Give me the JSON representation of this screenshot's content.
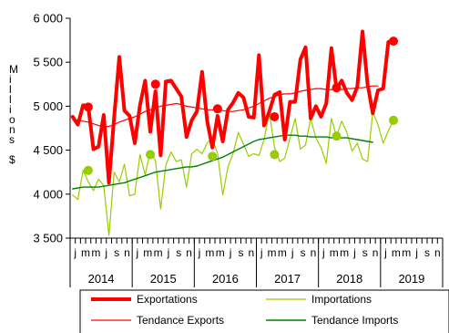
{
  "chart_data": {
    "type": "line",
    "ylabel": "Millions $",
    "ylim": [
      3500,
      6000
    ],
    "yticks": [
      "3 500",
      "4 000",
      "4 500",
      "5 000",
      "5 500",
      "6 000"
    ],
    "years": [
      "2014",
      "2015",
      "2016",
      "2017",
      "2018",
      "2019"
    ],
    "month_labels": [
      "j",
      "m",
      "m",
      "j",
      "s",
      "n"
    ],
    "grid": false,
    "legend_position": "bottom",
    "x_start": "2014-01",
    "series": [
      {
        "name": "Exportations",
        "color": "#ff0000",
        "values": [
          4880,
          4790,
          5010,
          5000,
          4510,
          4540,
          4900,
          4130,
          4870,
          5560,
          4950,
          4890,
          4580,
          5010,
          5290,
          4710,
          5170,
          4440,
          5280,
          5290,
          5200,
          5110,
          4650,
          4840,
          4940,
          5390,
          4830,
          4530,
          4890,
          4600,
          4960,
          5040,
          5150,
          5100,
          4880,
          4870,
          5580,
          4780,
          4940,
          5130,
          5160,
          4620,
          5050,
          5050,
          5530,
          5670,
          4860,
          5000,
          4880,
          5030,
          5660,
          5200,
          5290,
          5150,
          5070,
          5220,
          5850,
          5250,
          4920,
          5180,
          5200,
          5730,
          5750
        ]
      },
      {
        "name": "Importations",
        "color": "#99cc00",
        "values": [
          3990,
          3940,
          4270,
          4140,
          4040,
          4170,
          4100,
          3530,
          4250,
          4140,
          4340,
          3980,
          4000,
          4450,
          4220,
          4490,
          4380,
          3830,
          4330,
          4480,
          4370,
          4390,
          4080,
          4460,
          4510,
          4460,
          4580,
          4640,
          4460,
          3990,
          4310,
          4460,
          4700,
          4570,
          4430,
          4460,
          4440,
          4620,
          4930,
          4530,
          4370,
          4410,
          4640,
          4860,
          4510,
          4560,
          4860,
          4640,
          4530,
          4350,
          4860,
          4660,
          4830,
          4700,
          4490,
          4580,
          4400,
          4370,
          4930,
          4790,
          4580,
          4720,
          4840
        ]
      },
      {
        "name": "Tendance Exports",
        "color": "#ff0000",
        "values": [
          4850,
          4840,
          4830,
          4820,
          4800,
          4780,
          4770,
          4770,
          4790,
          4820,
          4840,
          4860,
          4880,
          4910,
          4940,
          4960,
          4980,
          5000,
          5010,
          5020,
          5030,
          5020,
          5000,
          4990,
          4980,
          4970,
          4960,
          4960,
          4950,
          4950,
          4940,
          4940,
          4950,
          4960,
          4980,
          5000,
          5030,
          5060,
          5090,
          5110,
          5130,
          5140,
          5140,
          5150,
          5170,
          5180,
          5190,
          5200,
          5200,
          5190,
          5190,
          5190,
          5190,
          5200,
          5200,
          5210,
          5210,
          5220,
          5230,
          5230
        ]
      },
      {
        "name": "Tendance Imports",
        "color": "#008000",
        "values": [
          4060,
          4070,
          4080,
          4080,
          4080,
          4080,
          4090,
          4100,
          4110,
          4120,
          4130,
          4150,
          4170,
          4190,
          4210,
          4230,
          4250,
          4260,
          4270,
          4280,
          4290,
          4300,
          4310,
          4310,
          4320,
          4340,
          4360,
          4380,
          4400,
          4420,
          4450,
          4480,
          4510,
          4540,
          4570,
          4600,
          4620,
          4630,
          4640,
          4650,
          4660,
          4670,
          4670,
          4670,
          4660,
          4660,
          4650,
          4650,
          4650,
          4650,
          4640,
          4640,
          4640,
          4640,
          4630,
          4620,
          4610,
          4600,
          4590
        ]
      }
    ],
    "markers": [
      {
        "series": "Exportations",
        "month_index": 3,
        "value": 4990
      },
      {
        "series": "Exportations",
        "month_index": 16,
        "value": 5250
      },
      {
        "series": "Exportations",
        "month_index": 28,
        "value": 4970
      },
      {
        "series": "Exportations",
        "month_index": 39,
        "value": 4880
      },
      {
        "series": "Exportations",
        "month_index": 51,
        "value": 5210
      },
      {
        "series": "Exportations",
        "month_index": 62,
        "value": 5740
      },
      {
        "series": "Importations",
        "month_index": 3,
        "value": 4270
      },
      {
        "series": "Importations",
        "month_index": 15,
        "value": 4450
      },
      {
        "series": "Importations",
        "month_index": 27,
        "value": 4430
      },
      {
        "series": "Importations",
        "month_index": 39,
        "value": 4450
      },
      {
        "series": "Importations",
        "month_index": 51,
        "value": 4660
      },
      {
        "series": "Importations",
        "month_index": 62,
        "value": 4840
      }
    ]
  }
}
